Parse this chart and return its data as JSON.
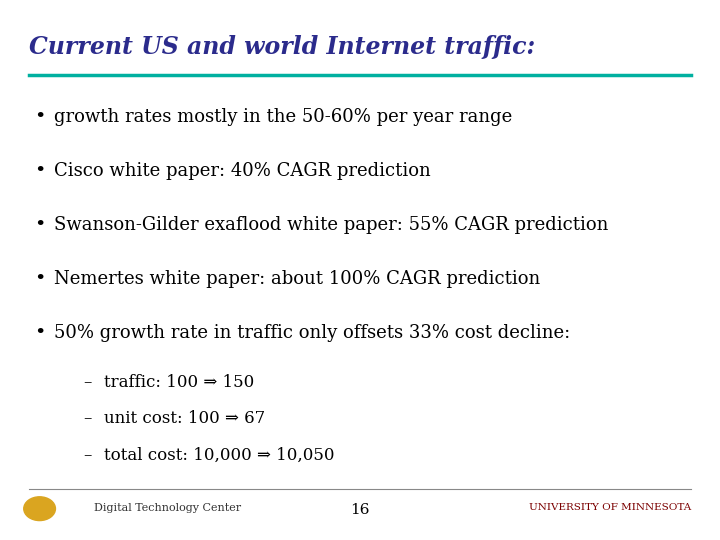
{
  "title": "Current US and world Internet traffic:",
  "title_color": "#2B2B8C",
  "title_fontsize": 17,
  "line_color": "#00B0A0",
  "background_color": "#FFFFFF",
  "bullet_points": [
    "growth rates mostly in the 50-60% per year range",
    "Cisco white paper: 40% CAGR prediction",
    "Swanson-Gilder exaflood white paper: 55% CAGR prediction",
    "Nemertes white paper: about 100% CAGR prediction",
    "50% growth rate in traffic only offsets 33% cost decline:"
  ],
  "sub_bullets": [
    "traffic: 100 ⇒ 150",
    "unit cost: 100 ⇒ 67",
    "total cost: 10,000 ⇒ 10,050"
  ],
  "page_number": "16",
  "footer_left": "Digital Technology Center",
  "footer_right": "University of Minnesota",
  "footer_line_color": "#888888",
  "bullet_fontsize": 13,
  "sub_bullet_fontsize": 12,
  "bullet_color": "#000000",
  "footer_right_color": "#7B0000",
  "font_family": "serif"
}
